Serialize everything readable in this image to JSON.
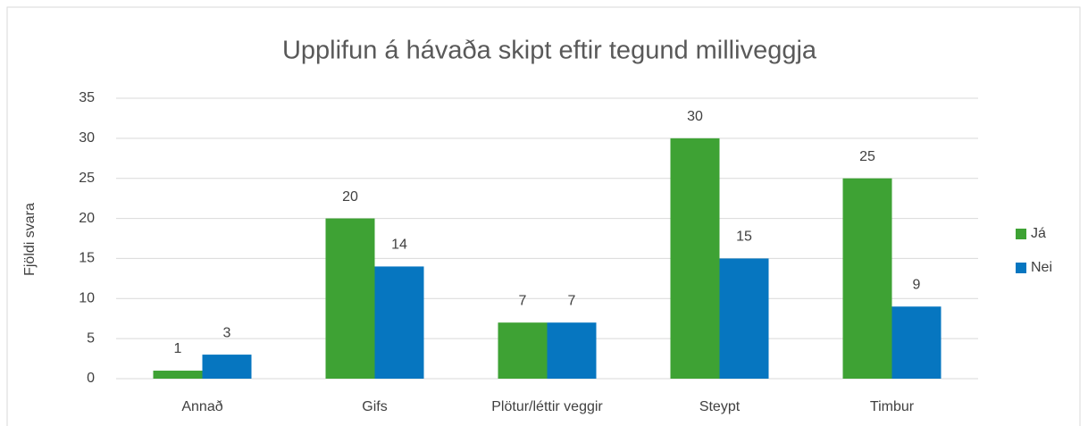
{
  "chart_data": {
    "type": "bar",
    "title": "Upplifun á hávaða skipt eftir tegund milliveggja",
    "y_label": "Fjöldi svara",
    "categories": [
      "Annað",
      "Gifs",
      "Plötur/léttir veggir",
      "Steypt",
      "Timbur"
    ],
    "series": [
      {
        "name": "Já",
        "color": "#3ea234",
        "values": [
          1,
          20,
          7,
          30,
          25
        ]
      },
      {
        "name": "Nei",
        "color": "#0676c0",
        "values": [
          3,
          14,
          7,
          15,
          9
        ]
      }
    ],
    "ylim": [
      0,
      35
    ],
    "yticks": [
      0,
      5,
      10,
      15,
      20,
      25,
      30,
      35
    ],
    "grid": true,
    "legend": "right"
  }
}
